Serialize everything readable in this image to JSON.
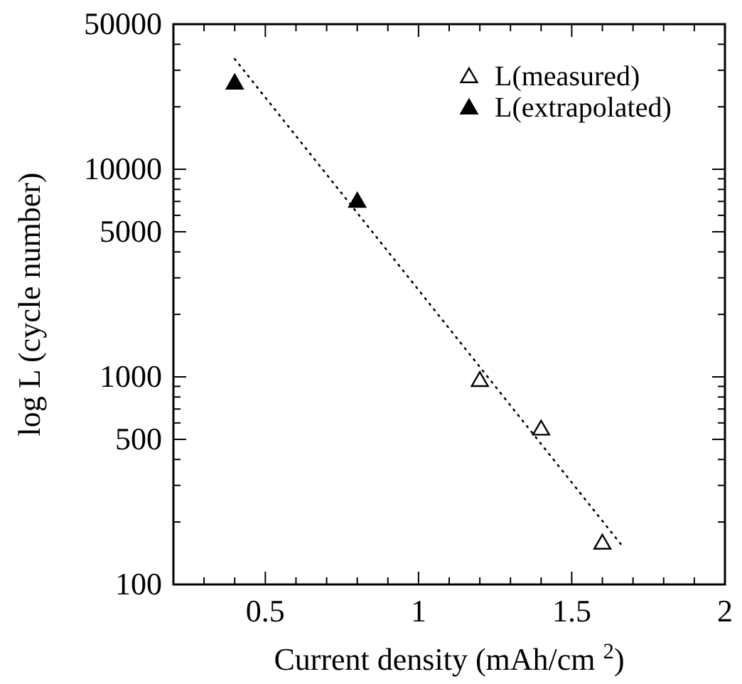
{
  "chart_data": {
    "type": "scatter",
    "xlabel": "Current density (mAh/cm $^{2}$)",
    "ylabel": "log L (cycle number)",
    "log": "y",
    "xlim": [
      0.2,
      2
    ],
    "xticks": [
      {
        "value": 0.3,
        "label": null
      },
      {
        "value": 0.4,
        "label": null
      },
      {
        "value": 0.5,
        "label": "0.5"
      },
      {
        "value": 0.6,
        "label": null
      },
      {
        "value": 0.7,
        "label": null
      },
      {
        "value": 0.8,
        "label": null
      },
      {
        "value": 0.9,
        "label": null
      },
      1,
      {
        "value": 1.1,
        "label": null
      },
      {
        "value": 1.2,
        "label": null
      },
      {
        "value": 1.3,
        "label": null
      },
      {
        "value": 1.4,
        "label": null
      },
      {
        "value": 1.5,
        "label": "1.5"
      },
      {
        "value": 1.6,
        "label": null
      },
      {
        "value": 1.7,
        "label": null
      },
      {
        "value": 1.8,
        "label": null
      },
      {
        "value": 1.9,
        "label": null
      },
      2
    ],
    "ylim": [
      100,
      50000
    ],
    "yticks": [
      100,
      {
        "value": 200,
        "label": null
      },
      {
        "value": 300,
        "label": null
      },
      {
        "value": 400,
        "label": null
      },
      500,
      {
        "value": 600,
        "label": null
      },
      {
        "value": 700,
        "label": null
      },
      {
        "value": 800,
        "label": null
      },
      {
        "value": 900,
        "label": null
      },
      1000,
      {
        "value": 2000,
        "label": null
      },
      {
        "value": 3000,
        "label": null
      },
      {
        "value": 4000,
        "label": null
      },
      5000,
      {
        "value": 6000,
        "label": null
      },
      {
        "value": 7000,
        "label": null
      },
      {
        "value": 8000,
        "label": null
      },
      {
        "value": 9000,
        "label": null
      },
      10000,
      {
        "value": 20000,
        "label": null
      },
      {
        "value": 30000,
        "label": null
      },
      {
        "value": 40000,
        "label": null
      },
      50000
    ],
    "grid": false,
    "legend": "top right",
    "marker": "triangle",
    "series": [
      {
        "name": "L(measured)",
        "color": "#ffffff",
        "x": [
          1.2,
          1.4,
          1.6
        ],
        "values": [
          960,
          560,
          158
        ]
      },
      {
        "name": "L(extrapolated)",
        "color": "#000000",
        "x": [
          0.4,
          0.8
        ],
        "values": [
          26000,
          7000
        ]
      },
      {
        "type": "line",
        "line_style": "dotted",
        "marker": "none",
        "color": "#000000",
        "x": [
          0.4,
          1.67
        ],
        "values": [
          34000,
          150
        ]
      }
    ]
  }
}
